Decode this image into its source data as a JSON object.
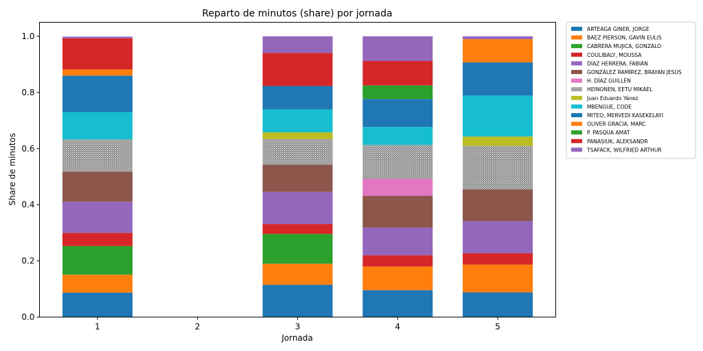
{
  "chart_data": {
    "type": "bar",
    "stacked": true,
    "title": "Reparto de minutos (share) por jornada",
    "xlabel": "Jornada",
    "ylabel": "Share de minutos",
    "categories": [
      "1",
      "2",
      "3",
      "4",
      "5"
    ],
    "yticks": [
      "0.0",
      "0.2",
      "0.4",
      "0.6",
      "0.8",
      "1.0"
    ],
    "ylim": [
      0,
      1.05
    ],
    "legend_position": "outside-top-right",
    "series": [
      {
        "name": "ARTEAGA GINER, JORGE",
        "color": "#1f77b4",
        "values": [
          0.087,
          0,
          0.115,
          0.096,
          0.088
        ]
      },
      {
        "name": "BAEZ PIERSON, GAVIN EULIS",
        "color": "#ff7f0e",
        "values": [
          0.064,
          0,
          0.075,
          0.084,
          0.099
        ]
      },
      {
        "name": "CABRERA MUJICA, GONZALO",
        "color": "#2ca02c",
        "values": [
          0.102,
          0,
          0.106,
          0,
          0
        ]
      },
      {
        "name": "COULIBALY, MOUSSA",
        "color": "#d62728",
        "values": [
          0.047,
          0,
          0.035,
          0.04,
          0.04
        ]
      },
      {
        "name": "DÍAZ HERRERA, FABIÁN",
        "color": "#9467bd",
        "values": [
          0.111,
          0,
          0.115,
          0.099,
          0.115
        ]
      },
      {
        "name": "GONZÁLEZ RAMÍREZ, BRAYAN JESÚS",
        "color": "#8c564b",
        "values": [
          0.107,
          0,
          0.097,
          0.113,
          0.113
        ]
      },
      {
        "name": "H. DÍAZ GUILLÉN",
        "color": "#e377c2",
        "values": [
          0,
          0,
          0,
          0.06,
          0
        ]
      },
      {
        "name": "HEINONEN, EETU MIKAEL",
        "color": "#7f7f7f",
        "pattern": true,
        "values": [
          0.115,
          0,
          0.091,
          0.121,
          0.155
        ]
      },
      {
        "name": "Juan Eduardo Yánez",
        "color": "#bcbd22",
        "values": [
          0,
          0,
          0.024,
          0,
          0.033
        ]
      },
      {
        "name": "MBENGUE, CODE",
        "color": "#17becf",
        "values": [
          0.097,
          0,
          0.082,
          0.064,
          0.146
        ]
      },
      {
        "name": "MITEO, MERVEDI KASEKELAYI",
        "color": "#1f77b4",
        "values": [
          0.13,
          0,
          0.083,
          0.1,
          0.118
        ]
      },
      {
        "name": "OLIVER GRACIA, MARC",
        "color": "#ff7f0e",
        "values": [
          0.022,
          0,
          0,
          0,
          0.083
        ]
      },
      {
        "name": "P. PASQUA AMAT",
        "color": "#2ca02c",
        "values": [
          0,
          0,
          0,
          0.048,
          0
        ]
      },
      {
        "name": "PANASIUK, ALEKSANDR",
        "color": "#d62728",
        "values": [
          0.111,
          0,
          0.118,
          0.087,
          0
        ]
      },
      {
        "name": "TSAFACK, WILFRIED ARTHUR",
        "color": "#9467bd",
        "values": [
          0.006,
          0,
          0.059,
          0.088,
          0.01
        ]
      }
    ]
  }
}
